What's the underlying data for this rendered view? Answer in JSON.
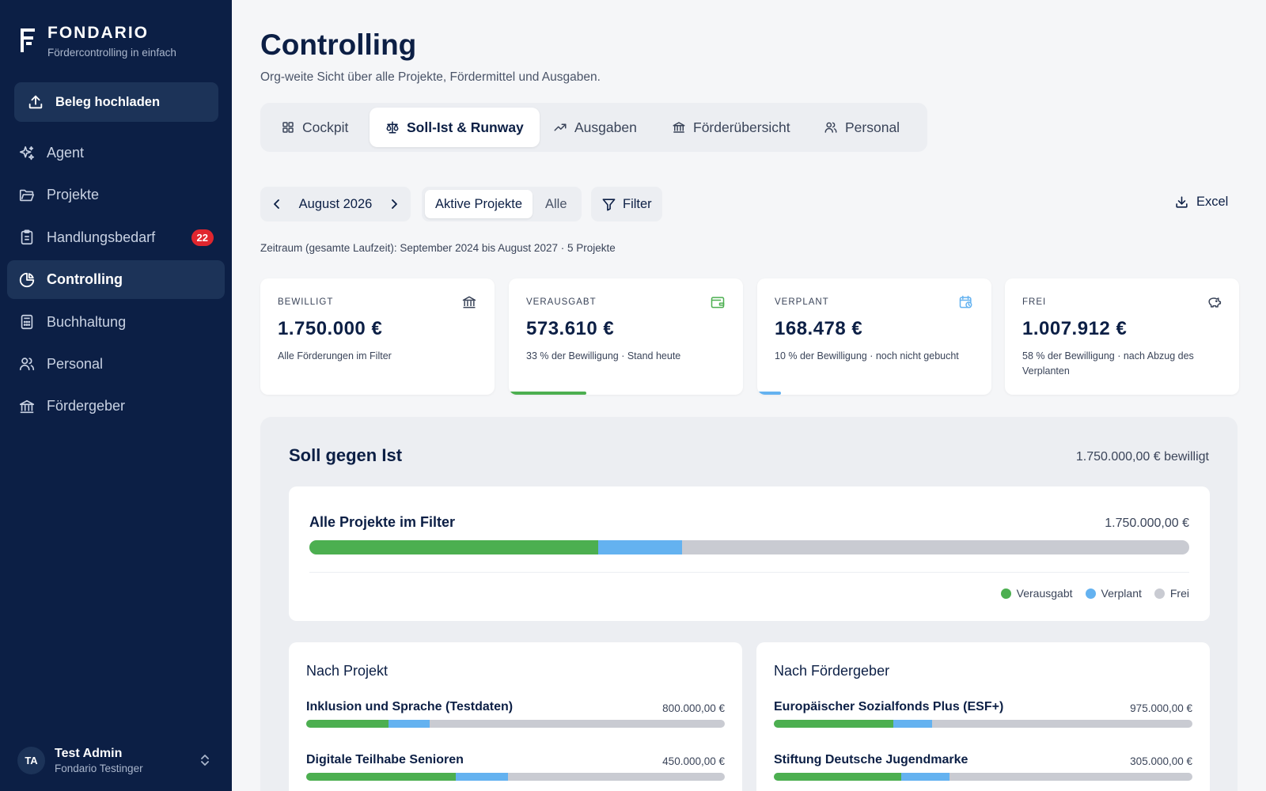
{
  "colors": {
    "spent": "#4caf50",
    "planned": "#64b2f0",
    "free": "#c9cbd2",
    "sidebar": "#0c1f45"
  },
  "sidebar": {
    "brand_name": "FONDARIO",
    "brand_tagline": "Fördercontrolling in einfach",
    "upload_label": "Beleg hochladen",
    "items": [
      {
        "label": "Agent",
        "icon": "sparkle-icon"
      },
      {
        "label": "Projekte",
        "icon": "folder-icon"
      },
      {
        "label": "Handlungsbedarf",
        "icon": "clipboard-icon",
        "badge": "22"
      },
      {
        "label": "Controlling",
        "icon": "pie-chart-icon",
        "active": true
      },
      {
        "label": "Buchhaltung",
        "icon": "calculator-icon"
      },
      {
        "label": "Personal",
        "icon": "users-icon"
      },
      {
        "label": "Fördergeber",
        "icon": "bank-icon"
      }
    ],
    "user": {
      "initials": "TA",
      "name": "Test Admin",
      "org": "Fondario Testinger"
    }
  },
  "header": {
    "title": "Controlling",
    "subtitle": "Org-weite Sicht über alle Projekte, Fördermittel und Ausgaben."
  },
  "tabs": [
    {
      "label": "Cockpit",
      "icon": "grid-icon"
    },
    {
      "label": "Soll-Ist & Runway",
      "icon": "scale-icon",
      "active": true
    },
    {
      "label": "Ausgaben",
      "icon": "trend-up-icon"
    },
    {
      "label": "Förderübersicht",
      "icon": "bank-icon"
    },
    {
      "label": "Personal",
      "icon": "users-icon"
    }
  ],
  "toolbar": {
    "month": "August 2026",
    "scope_active": "Aktive Projekte",
    "scope_all": "Alle",
    "filter_label": "Filter",
    "excel_label": "Excel",
    "period_text": "Zeitraum (gesamte Laufzeit): September 2024 bis August 2027 · 5 Projekte"
  },
  "kpis": [
    {
      "label": "BEWILLIGT",
      "value": "1.750.000 €",
      "note": "Alle Förderungen im Filter",
      "icon": "bank-icon"
    },
    {
      "label": "VERAUSGABT",
      "value": "573.610 €",
      "note": "33 % der Bewilligung · Stand heute",
      "icon": "wallet-icon",
      "bar_fraction": 0.33
    },
    {
      "label": "VERPLANT",
      "value": "168.478 €",
      "note": "10 % der Bewilligung · noch nicht gebucht",
      "icon": "calendar-clock-icon",
      "bar_fraction": 0.1
    },
    {
      "label": "FREI",
      "value": "1.007.912 €",
      "note": "58 % der Bewilligung · nach Abzug des Verplanten",
      "icon": "piggy-bank-icon"
    }
  ],
  "soll_ist": {
    "title": "Soll gegen Ist",
    "total_label": "1.750.000,00 € bewilligt",
    "all": {
      "title": "Alle Projekte im Filter",
      "value": "1.750.000,00 €",
      "spent_fraction": 0.328,
      "planned_fraction": 0.096
    },
    "legend": [
      "Verausgabt",
      "Verplant",
      "Frei"
    ]
  },
  "by_project": {
    "title": "Nach Projekt",
    "rows": [
      {
        "name": "Inklusion und Sprache (Testdaten)",
        "value": "800.000,00 €",
        "spent_fraction": 0.197,
        "planned_fraction": 0.097
      },
      {
        "name": "Digitale Teilhabe Senioren",
        "value": "450.000,00 €",
        "spent_fraction": 0.358,
        "planned_fraction": 0.124
      }
    ]
  },
  "by_funder": {
    "title": "Nach Fördergeber",
    "rows": [
      {
        "name": "Europäischer Sozialfonds Plus (ESF+)",
        "value": "975.000,00 €",
        "spent_fraction": 0.286,
        "planned_fraction": 0.092
      },
      {
        "name": "Stiftung Deutsche Jugendmarke",
        "value": "305.000,00 €",
        "spent_fraction": 0.305,
        "planned_fraction": 0.114
      }
    ]
  }
}
